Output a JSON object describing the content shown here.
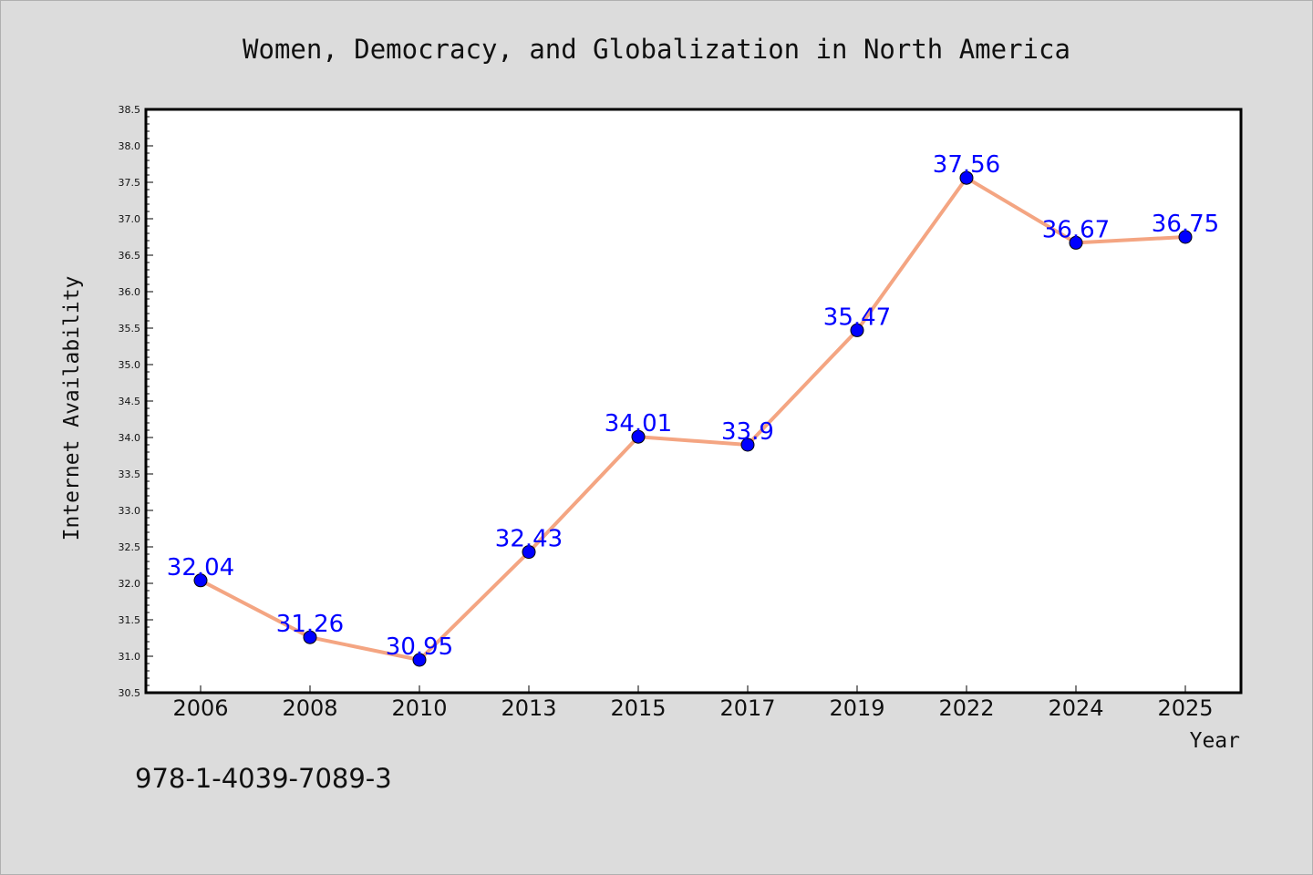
{
  "chart_data": {
    "type": "line",
    "title": "Women, Democracy, and Globalization in North America",
    "xlabel": "Year",
    "ylabel": "Internet Availability",
    "categories": [
      "2006",
      "2008",
      "2010",
      "2013",
      "2015",
      "2017",
      "2019",
      "2022",
      "2024",
      "2025"
    ],
    "series": [
      {
        "values": [
          32.04,
          31.26,
          30.95,
          32.43,
          34.01,
          33.9,
          35.47,
          37.56,
          36.67,
          36.75
        ],
        "labels": [
          "32.04",
          "31.26",
          "30.95",
          "32.43",
          "34.01",
          "33.9",
          "35.47",
          "37.56",
          "36.67",
          "36.75"
        ]
      }
    ],
    "ylim": [
      30.5,
      38.5
    ],
    "yticks": [
      "30.5",
      "31.0",
      "31.5",
      "32.0",
      "32.5",
      "33.0",
      "33.5",
      "34.0",
      "34.5",
      "35.0",
      "35.5",
      "36.0",
      "36.5",
      "37.0",
      "37.5",
      "38.0",
      "38.5"
    ],
    "grid": false,
    "legend": "none",
    "colors": {
      "line": "#f4a582",
      "marker": "#0000ff",
      "data_label": "#0000ff",
      "background": "#dcdcdc",
      "plot_background": "#ffffff"
    }
  },
  "footer": {
    "isbn": "978-1-4039-7089-3"
  }
}
